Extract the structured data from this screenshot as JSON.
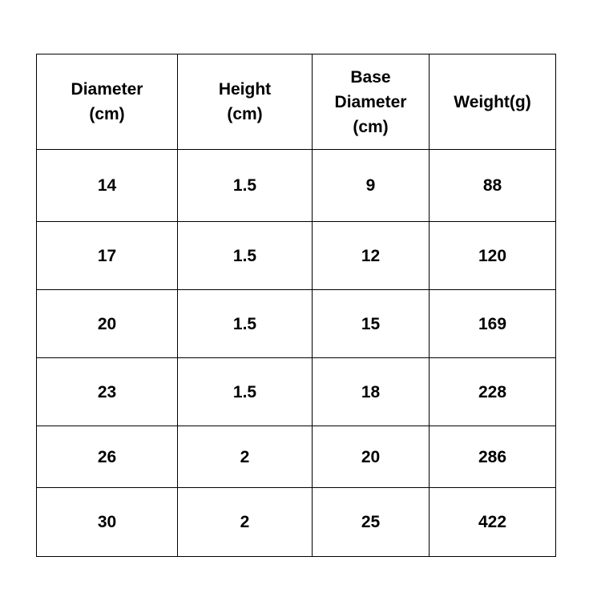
{
  "table": {
    "headers": [
      [
        "Diameter",
        "(cm)"
      ],
      [
        "Height",
        "(cm)"
      ],
      [
        "Base",
        "Diameter",
        "(cm)"
      ],
      [
        "Weight(g)"
      ]
    ],
    "rows": [
      [
        "14",
        "1.5",
        "9",
        "88"
      ],
      [
        "17",
        "1.5",
        "12",
        "120"
      ],
      [
        "20",
        "1.5",
        "15",
        "169"
      ],
      [
        "23",
        "1.5",
        "18",
        "228"
      ],
      [
        "26",
        "2",
        "20",
        "286"
      ],
      [
        "30",
        "2",
        "25",
        "422"
      ]
    ]
  }
}
